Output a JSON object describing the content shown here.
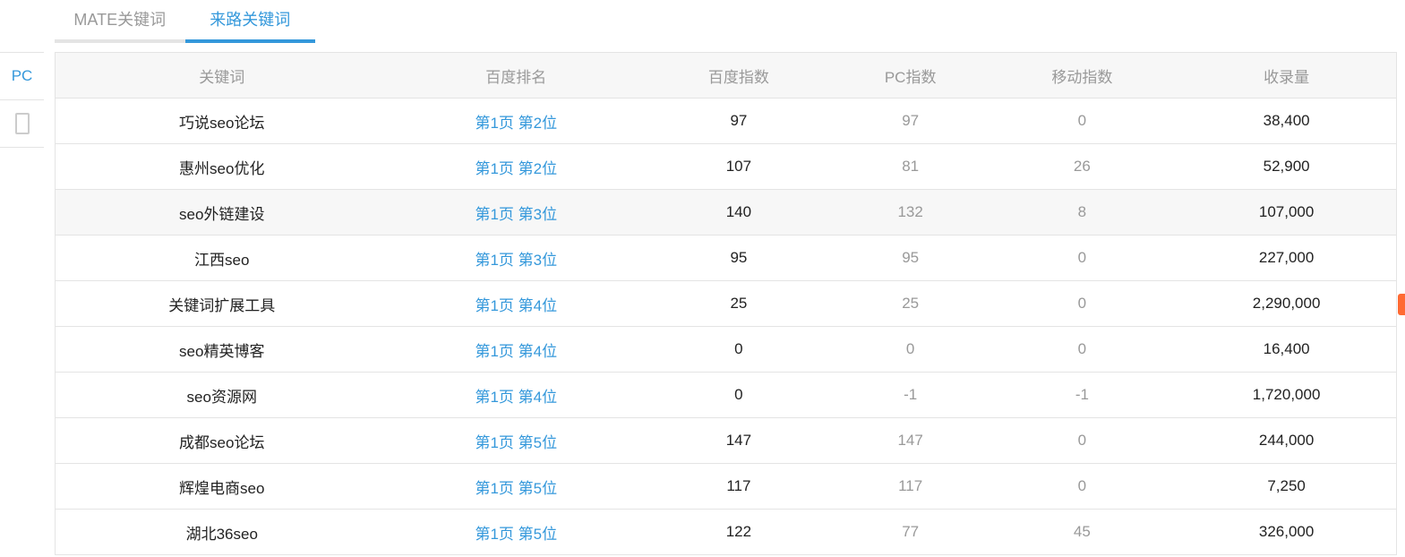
{
  "tabs": [
    {
      "label": "MATE关键词",
      "active": false
    },
    {
      "label": "来路关键词",
      "active": true
    }
  ],
  "device_tabs": {
    "pc_label": "PC",
    "mobile_icon": "mobile-phone-icon"
  },
  "accent_color": "#3498db",
  "table": {
    "headers": [
      "关键词",
      "百度排名",
      "百度指数",
      "PC指数",
      "移动指数",
      "收录量"
    ],
    "rows": [
      [
        "巧说seo论坛",
        "第1页 第2位",
        "97",
        "97",
        "0",
        "38,400"
      ],
      [
        "惠州seo优化",
        "第1页 第2位",
        "107",
        "81",
        "26",
        "52,900"
      ],
      [
        "seo外链建设",
        "第1页 第3位",
        "140",
        "132",
        "8",
        "107,000"
      ],
      [
        "江西seo",
        "第1页 第3位",
        "95",
        "95",
        "0",
        "227,000"
      ],
      [
        "关键词扩展工具",
        "第1页 第4位",
        "25",
        "25",
        "0",
        "2,290,000"
      ],
      [
        "seo精英博客",
        "第1页 第4位",
        "0",
        "0",
        "0",
        "16,400"
      ],
      [
        "seo资源网",
        "第1页 第4位",
        "0",
        "-1",
        "-1",
        "1,720,000"
      ],
      [
        "成都seo论坛",
        "第1页 第5位",
        "147",
        "147",
        "0",
        "244,000"
      ],
      [
        "辉煌电商seo",
        "第1页 第5位",
        "117",
        "117",
        "0",
        "7,250"
      ],
      [
        "湖北36seo",
        "第1页 第5位",
        "122",
        "77",
        "45",
        "326,000"
      ]
    ]
  }
}
